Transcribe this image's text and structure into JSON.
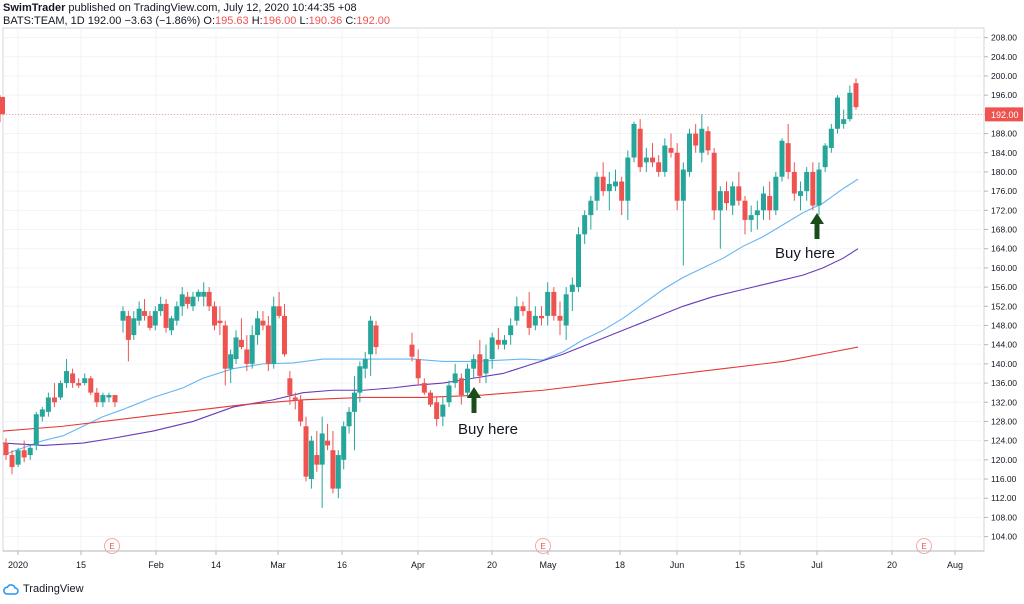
{
  "header": {
    "publisher": "SwimTrader",
    "published_on": "published on TradingView.com, July 12, 2020 10:44:35 +08",
    "symbol": "BATS:TEAM, 1D",
    "last": "192.00",
    "change": "−3.63 (−1.86%)",
    "o_label": "O:",
    "o": "195.63",
    "h_label": "H:",
    "h": "196.00",
    "l_label": "L:",
    "l": "190.36",
    "c_label": "C:",
    "c": "192.00"
  },
  "footer": {
    "brand": "TradingView"
  },
  "colors": {
    "up": "#26a69a",
    "down": "#ef5350",
    "ma_short": "#64b5f6",
    "ma_mid": "#673ab7",
    "ma_long": "#e53935",
    "grid": "#f0f3fa",
    "arrow": "#1b4d1b"
  },
  "chart_data": {
    "type": "candlestick",
    "y_axis_ticks": [
      "208.00",
      "204.00",
      "200.00",
      "196.00",
      "192.00",
      "188.00",
      "184.00",
      "180.00",
      "176.00",
      "172.00",
      "168.00",
      "164.00",
      "160.00",
      "156.00",
      "152.00",
      "148.00",
      "144.00",
      "140.00",
      "136.00",
      "132.00",
      "128.00",
      "124.00",
      "120.00",
      "116.00",
      "112.00",
      "108.00",
      "104.00"
    ],
    "ylim": [
      101,
      210
    ],
    "x_axis_ticks": [
      "2020",
      "15",
      "Feb",
      "14",
      "Mar",
      "16",
      "Apr",
      "20",
      "May",
      "18",
      "Jun",
      "15",
      "Jul",
      "20",
      "Aug"
    ],
    "price_label": "192.00",
    "earnings_marker": "E",
    "annotations": [
      "Buy here",
      "Buy here"
    ],
    "candles": [
      [
        123.5,
        124.5,
        120.0,
        121.0
      ],
      [
        121.0,
        122.0,
        117.0,
        118.5
      ],
      [
        119.0,
        122.5,
        118.5,
        122.0
      ],
      [
        122.0,
        124.0,
        119.5,
        120.5
      ],
      [
        121.0,
        123.0,
        120.0,
        122.5
      ],
      [
        123.0,
        130.0,
        122.0,
        129.5
      ],
      [
        129.0,
        131.0,
        128.0,
        130.5
      ],
      [
        130.0,
        134.0,
        129.0,
        133.0
      ],
      [
        133.0,
        136.0,
        131.0,
        132.0
      ],
      [
        133.0,
        136.5,
        132.5,
        136.0
      ],
      [
        136.0,
        141.0,
        135.0,
        138.5
      ],
      [
        138.0,
        139.0,
        135.0,
        136.0
      ],
      [
        136.0,
        137.0,
        135.0,
        135.5
      ],
      [
        136.0,
        138.0,
        135.5,
        137.0
      ],
      [
        137.0,
        137.5,
        133.5,
        134.0
      ],
      [
        134.0,
        135.0,
        131.0,
        132.0
      ],
      [
        132.0,
        134.0,
        131.0,
        133.5
      ],
      [
        133.0,
        134.0,
        132.0,
        133.5
      ],
      [
        133.5,
        133.5,
        131.0,
        132.0
      ],
      [
        149.0,
        152.0,
        146.5,
        151.0
      ],
      [
        150.0,
        151.0,
        140.5,
        145.0
      ],
      [
        146.0,
        151.0,
        145.0,
        149.5
      ],
      [
        149.0,
        153.0,
        148.0,
        151.5
      ],
      [
        151.0,
        153.5,
        149.0,
        150.0
      ],
      [
        150.0,
        151.0,
        147.0,
        147.5
      ],
      [
        148.0,
        152.0,
        147.0,
        151.0
      ],
      [
        151.0,
        154.0,
        150.0,
        152.5
      ],
      [
        152.5,
        153.5,
        146.5,
        147.5
      ],
      [
        147.0,
        150.0,
        146.0,
        149.5
      ],
      [
        149.0,
        153.0,
        148.0,
        152.0
      ],
      [
        152.0,
        156.0,
        150.0,
        154.5
      ],
      [
        154.0,
        155.0,
        151.5,
        152.5
      ],
      [
        152.0,
        155.0,
        151.0,
        154.0
      ],
      [
        154.0,
        155.5,
        153.0,
        155.0
      ],
      [
        154.0,
        157.0,
        152.0,
        155.0
      ],
      [
        155.0,
        156.0,
        151.0,
        152.0
      ],
      [
        152.0,
        153.0,
        147.0,
        148.0
      ],
      [
        149.0,
        152.0,
        146.0,
        148.5
      ],
      [
        148.0,
        149.0,
        135.5,
        139.0
      ],
      [
        139.0,
        143.0,
        136.0,
        142.0
      ],
      [
        141.0,
        147.0,
        140.0,
        145.5
      ],
      [
        145.0,
        149.5,
        143.0,
        143.5
      ],
      [
        143.0,
        146.0,
        138.5,
        140.0
      ],
      [
        140.0,
        148.0,
        139.0,
        146.0
      ],
      [
        146.0,
        151.0,
        144.0,
        149.5
      ],
      [
        149.0,
        151.0,
        147.0,
        148.0
      ],
      [
        148.0,
        150.0,
        138.5,
        140.0
      ],
      [
        140.0,
        154.0,
        139.0,
        152.0
      ],
      [
        152.0,
        155.0,
        149.5,
        150.0
      ],
      [
        150.0,
        152.5,
        141.5,
        142.0
      ],
      [
        137.0,
        138.5,
        131.5,
        133.5
      ],
      [
        133.0,
        134.0,
        130.5,
        132.5
      ],
      [
        132.5,
        133.5,
        127.0,
        128.0
      ],
      [
        127.0,
        129.0,
        115.5,
        116.5
      ],
      [
        116.0,
        125.0,
        114.0,
        124.0
      ],
      [
        121.0,
        126.0,
        117.5,
        119.0
      ],
      [
        119.0,
        129.0,
        110.0,
        125.5
      ],
      [
        124.0,
        127.5,
        122.0,
        123.0
      ],
      [
        122.0,
        126.0,
        113.0,
        114.0
      ],
      [
        114.0,
        122.0,
        112.0,
        121.0
      ],
      [
        120.0,
        128.0,
        118.0,
        127.0
      ],
      [
        127.0,
        131.0,
        125.5,
        130.0
      ],
      [
        130.0,
        137.5,
        122.0,
        134.0
      ],
      [
        134.0,
        140.5,
        132.0,
        139.5
      ],
      [
        139.0,
        142.5,
        137.0,
        141.0
      ],
      [
        142.0,
        150.0,
        137.5,
        149.0
      ],
      [
        148.0,
        149.0,
        142.0,
        143.5
      ],
      [
        144.0,
        146.5,
        140.5,
        141.5
      ],
      [
        141.0,
        143.0,
        135.5,
        137.0
      ],
      [
        136.0,
        137.0,
        133.5,
        134.0
      ],
      [
        134.0,
        134.5,
        131.0,
        131.5
      ],
      [
        132.0,
        133.0,
        127.0,
        128.5
      ],
      [
        129.0,
        133.0,
        127.0,
        131.5
      ],
      [
        132.0,
        136.5,
        131.0,
        135.5
      ],
      [
        136.0,
        140.0,
        135.0,
        138.0
      ],
      [
        137.0,
        138.0,
        131.5,
        133.5
      ],
      [
        134.0,
        140.0,
        133.0,
        139.0
      ],
      [
        139.0,
        142.0,
        137.0,
        141.0
      ],
      [
        142.0,
        145.0,
        136.0,
        137.5
      ],
      [
        138.0,
        144.0,
        136.0,
        141.0
      ],
      [
        141.0,
        146.5,
        139.0,
        145.5
      ],
      [
        145.0,
        147.5,
        143.0,
        144.0
      ],
      [
        144.0,
        146.0,
        143.0,
        145.0
      ],
      [
        146.0,
        149.5,
        144.0,
        148.0
      ],
      [
        149.0,
        154.0,
        148.0,
        152.0
      ],
      [
        152.0,
        153.0,
        150.0,
        151.0
      ],
      [
        151.0,
        155.0,
        146.0,
        147.5
      ],
      [
        148.0,
        152.0,
        147.0,
        150.0
      ],
      [
        150.0,
        152.0,
        148.0,
        149.5
      ],
      [
        150.0,
        157.0,
        148.0,
        155.0
      ],
      [
        155.0,
        156.0,
        149.0,
        150.0
      ],
      [
        150.0,
        153.0,
        146.0,
        149.0
      ],
      [
        148.0,
        156.0,
        145.0,
        154.5
      ],
      [
        155.0,
        158.0,
        151.0,
        156.5
      ],
      [
        156.0,
        168.5,
        155.0,
        167.0
      ],
      [
        167.0,
        172.0,
        165.0,
        171.0
      ],
      [
        171.0,
        175.0,
        168.0,
        174.0
      ],
      [
        174.0,
        180.0,
        172.0,
        179.0
      ],
      [
        179.0,
        182.0,
        175.0,
        176.0
      ],
      [
        176.0,
        180.0,
        172.0,
        177.5
      ],
      [
        177.0,
        180.5,
        176.0,
        178.0
      ],
      [
        178.0,
        179.0,
        171.0,
        174.0
      ],
      [
        174.0,
        184.5,
        170.0,
        183.0
      ],
      [
        183.0,
        190.5,
        182.0,
        190.0
      ],
      [
        189.0,
        191.0,
        180.0,
        181.0
      ],
      [
        182.0,
        185.0,
        180.0,
        183.0
      ],
      [
        183.0,
        186.0,
        181.0,
        182.0
      ],
      [
        182.0,
        183.5,
        179.0,
        180.0
      ],
      [
        180.0,
        187.0,
        179.0,
        185.5
      ],
      [
        185.0,
        188.0,
        183.0,
        184.0
      ],
      [
        184.0,
        186.0,
        172.0,
        174.0
      ],
      [
        174.0,
        182.0,
        160.5,
        180.5
      ],
      [
        180.0,
        189.0,
        179.0,
        188.0
      ],
      [
        188.0,
        190.0,
        184.0,
        185.5
      ],
      [
        184.0,
        192.0,
        182.0,
        189.0
      ],
      [
        188.5,
        189.5,
        183.5,
        184.5
      ],
      [
        184.0,
        185.0,
        170.0,
        172.0
      ],
      [
        172.0,
        177.0,
        164.0,
        176.0
      ],
      [
        176.0,
        178.0,
        172.0,
        173.5
      ],
      [
        173.0,
        178.0,
        171.0,
        177.0
      ],
      [
        177.0,
        180.0,
        173.0,
        174.0
      ],
      [
        174.0,
        175.0,
        167.0,
        170.0
      ],
      [
        170.0,
        173.0,
        167.5,
        171.0
      ],
      [
        171.0,
        174.0,
        168.0,
        172.0
      ],
      [
        172.0,
        177.0,
        170.0,
        175.5
      ],
      [
        175.0,
        178.0,
        170.0,
        172.0
      ],
      [
        172.0,
        180.0,
        171.0,
        179.0
      ],
      [
        179.0,
        187.0,
        178.0,
        186.5
      ],
      [
        186.0,
        190.0,
        178.5,
        180.0
      ],
      [
        180.0,
        182.0,
        174.0,
        175.5
      ],
      [
        175.0,
        178.0,
        172.0,
        176.0
      ],
      [
        176.0,
        181.0,
        174.0,
        180.0
      ],
      [
        180.0,
        182.0,
        172.0,
        173.0
      ],
      [
        173.0,
        182.0,
        171.0,
        180.5
      ],
      [
        181.0,
        186.0,
        180.0,
        185.5
      ],
      [
        185.0,
        190.0,
        184.0,
        189.0
      ],
      [
        189.0,
        196.0,
        188.0,
        195.5
      ],
      [
        190.0,
        193.0,
        189.0,
        191.0
      ],
      [
        191.0,
        198.0,
        190.5,
        196.5
      ],
      [
        198.5,
        199.5,
        193.0,
        193.5
      ],
      [
        195.63,
        196.0,
        190.36,
        192.0
      ]
    ],
    "moving_averages": [
      {
        "period": "short",
        "values": [
          [
            0,
            121.0
          ],
          [
            20,
            122.5
          ],
          [
            40,
            124.0
          ],
          [
            60,
            125.0
          ],
          [
            80,
            127.0
          ],
          [
            100,
            129.0
          ],
          [
            120,
            130.5
          ],
          [
            150,
            133.0
          ],
          [
            180,
            135.0
          ],
          [
            200,
            137.0
          ],
          [
            230,
            139.0
          ],
          [
            260,
            140.0
          ],
          [
            290,
            140.2
          ],
          [
            320,
            141.0
          ],
          [
            350,
            141.0
          ],
          [
            380,
            141.0
          ],
          [
            410,
            141.0
          ],
          [
            440,
            140.5
          ],
          [
            470,
            140.5
          ],
          [
            500,
            140.8
          ],
          [
            520,
            141.0
          ],
          [
            540,
            140.8
          ],
          [
            560,
            142.5
          ],
          [
            580,
            145.0
          ],
          [
            600,
            147.0
          ],
          [
            620,
            149.5
          ],
          [
            640,
            152.5
          ],
          [
            660,
            155.5
          ],
          [
            680,
            158.0
          ],
          [
            700,
            160.0
          ],
          [
            720,
            162.0
          ],
          [
            740,
            164.5
          ],
          [
            760,
            166.5
          ],
          [
            780,
            169.0
          ],
          [
            800,
            171.5
          ],
          [
            820,
            173.5
          ],
          [
            840,
            176.5
          ],
          [
            855,
            178.5
          ]
        ]
      },
      {
        "period": "mid",
        "values": [
          [
            0,
            123.5
          ],
          [
            40,
            123.0
          ],
          [
            80,
            123.5
          ],
          [
            110,
            124.5
          ],
          [
            150,
            126.0
          ],
          [
            190,
            128.0
          ],
          [
            230,
            131.0
          ],
          [
            270,
            132.5
          ],
          [
            300,
            134.0
          ],
          [
            330,
            134.5
          ],
          [
            360,
            134.5
          ],
          [
            390,
            135.0
          ],
          [
            410,
            135.5
          ],
          [
            440,
            136.0
          ],
          [
            470,
            137.0
          ],
          [
            500,
            138.0
          ],
          [
            530,
            140.0
          ],
          [
            560,
            142.0
          ],
          [
            590,
            144.5
          ],
          [
            620,
            147.0
          ],
          [
            650,
            149.5
          ],
          [
            680,
            152.0
          ],
          [
            710,
            154.0
          ],
          [
            740,
            155.5
          ],
          [
            770,
            157.0
          ],
          [
            800,
            158.5
          ],
          [
            820,
            160.0
          ],
          [
            840,
            162.0
          ],
          [
            855,
            164.0
          ]
        ]
      },
      {
        "period": "long",
        "values": [
          [
            0,
            126.0
          ],
          [
            60,
            127.0
          ],
          [
            120,
            128.5
          ],
          [
            180,
            130.0
          ],
          [
            240,
            131.5
          ],
          [
            300,
            132.5
          ],
          [
            360,
            133.0
          ],
          [
            420,
            133.0
          ],
          [
            480,
            133.5
          ],
          [
            540,
            134.5
          ],
          [
            600,
            136.0
          ],
          [
            660,
            137.5
          ],
          [
            720,
            139.0
          ],
          [
            780,
            140.5
          ],
          [
            830,
            142.5
          ],
          [
            855,
            143.5
          ]
        ]
      }
    ]
  }
}
